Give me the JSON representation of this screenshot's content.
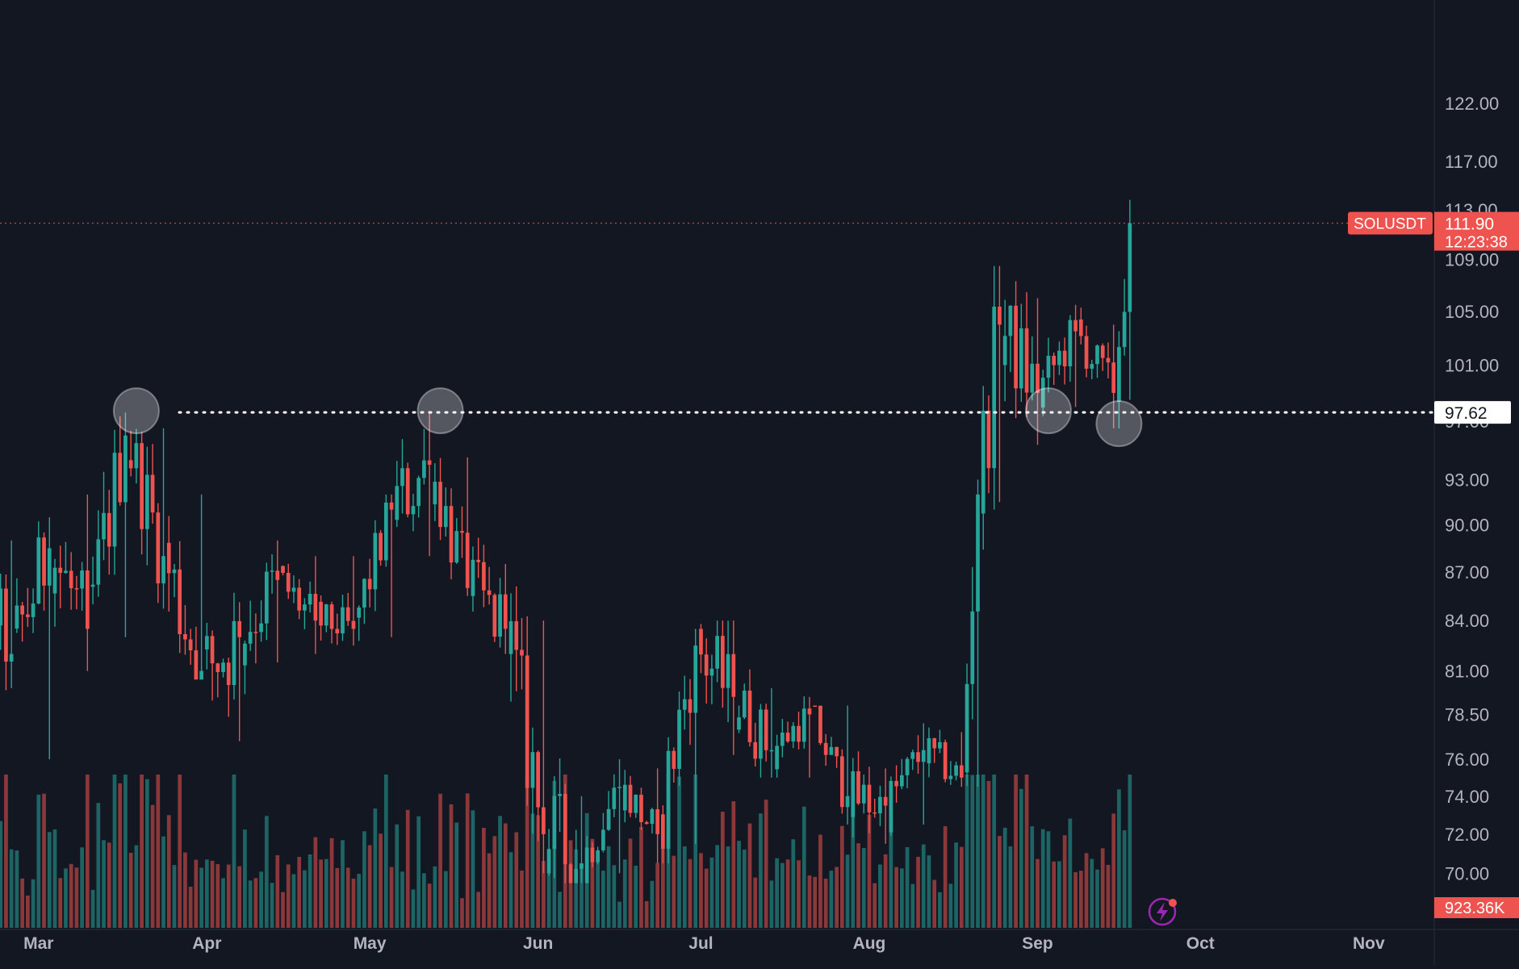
{
  "colors": {
    "background": "#131722",
    "up": "#26a69a",
    "down": "#ef5350",
    "axis_text": "#b2b5be",
    "axis_border": "#2a2e39",
    "support_line": "#ffffff",
    "circle_fill": "#ffffff",
    "price_badge": "#ef5350",
    "level_label_bg": "#ffffff",
    "level_label_text": "#131722",
    "flash_icon": "#9c27b0"
  },
  "icons": {
    "flash": "lightning-bolt-icon"
  },
  "chart_data": {
    "type": "candlestick",
    "symbol": "SOLUSDT",
    "price_axis_labels": [
      "122.00",
      "117.00",
      "113.00",
      "109.00",
      "105.00",
      "101.00",
      "97.00",
      "93.00",
      "90.00",
      "87.00",
      "84.00",
      "81.00",
      "78.50",
      "76.00",
      "74.00",
      "72.00",
      "70.00"
    ],
    "time_axis_labels": [
      "Mar",
      "Apr",
      "May",
      "Jun",
      "Jul",
      "Aug",
      "Sep",
      "Oct",
      "Nov"
    ],
    "last_price": "111.90",
    "countdown": "12:23:38",
    "volume_label": "923.36K",
    "support_level": "97.62",
    "support_value": 97.62,
    "y_scale": "log",
    "y_range": [
      69.2,
      126.5
    ],
    "x_range": [
      "2025-02-10",
      "2025-11-15"
    ],
    "grid": false,
    "ohlc_sampled": [
      {
        "date": "2025-02-10",
        "open": 81.5,
        "high": 86.0,
        "low": 77.0,
        "close": 78.0
      },
      {
        "date": "2025-02-17",
        "open": 78.0,
        "high": 89.5,
        "low": 77.5,
        "close": 88.0
      },
      {
        "date": "2025-02-24",
        "open": 88.0,
        "high": 89.0,
        "low": 80.0,
        "close": 82.0
      },
      {
        "date": "2025-03-03",
        "open": 82.0,
        "high": 90.5,
        "low": 76.0,
        "close": 88.5
      },
      {
        "date": "2025-03-10",
        "open": 88.5,
        "high": 92.0,
        "low": 81.0,
        "close": 83.5
      },
      {
        "date": "2025-03-17",
        "open": 83.5,
        "high": 97.6,
        "low": 83.0,
        "close": 96.0
      },
      {
        "date": "2025-03-24",
        "open": 96.0,
        "high": 96.5,
        "low": 86.0,
        "close": 88.0
      },
      {
        "date": "2025-03-31",
        "open": 88.0,
        "high": 92.0,
        "low": 80.5,
        "close": 81.0
      },
      {
        "date": "2025-04-07",
        "open": 81.0,
        "high": 85.0,
        "low": 77.0,
        "close": 83.0
      },
      {
        "date": "2025-04-14",
        "open": 83.0,
        "high": 89.0,
        "low": 81.5,
        "close": 86.5
      },
      {
        "date": "2025-04-21",
        "open": 86.5,
        "high": 88.0,
        "low": 82.0,
        "close": 84.0
      },
      {
        "date": "2025-04-28",
        "open": 84.0,
        "high": 88.0,
        "low": 82.5,
        "close": 83.5
      },
      {
        "date": "2025-05-05",
        "open": 83.5,
        "high": 92.0,
        "low": 83.0,
        "close": 91.0
      },
      {
        "date": "2025-05-12",
        "open": 91.0,
        "high": 97.6,
        "low": 88.0,
        "close": 94.0
      },
      {
        "date": "2025-05-19",
        "open": 94.0,
        "high": 94.5,
        "low": 85.5,
        "close": 86.0
      },
      {
        "date": "2025-05-26",
        "open": 86.0,
        "high": 87.5,
        "low": 82.0,
        "close": 83.5
      },
      {
        "date": "2025-06-02",
        "open": 83.5,
        "high": 84.0,
        "low": 70.0,
        "close": 72.0
      },
      {
        "date": "2025-06-09",
        "open": 72.0,
        "high": 74.0,
        "low": 69.5,
        "close": 70.5
      },
      {
        "date": "2025-06-16",
        "open": 70.5,
        "high": 76.0,
        "low": 70.0,
        "close": 74.5
      },
      {
        "date": "2025-06-23",
        "open": 74.5,
        "high": 75.5,
        "low": 70.5,
        "close": 72.0
      },
      {
        "date": "2025-06-30",
        "open": 72.0,
        "high": 83.5,
        "low": 71.5,
        "close": 82.5
      },
      {
        "date": "2025-07-07",
        "open": 82.5,
        "high": 84.0,
        "low": 78.0,
        "close": 79.5
      },
      {
        "date": "2025-07-14",
        "open": 79.5,
        "high": 80.0,
        "low": 75.0,
        "close": 76.5
      },
      {
        "date": "2025-07-21",
        "open": 76.5,
        "high": 79.0,
        "low": 75.0,
        "close": 78.5
      },
      {
        "date": "2025-07-28",
        "open": 78.5,
        "high": 79.0,
        "low": 72.5,
        "close": 74.0
      },
      {
        "date": "2025-08-04",
        "open": 74.0,
        "high": 75.5,
        "low": 71.5,
        "close": 73.5
      },
      {
        "date": "2025-08-11",
        "open": 73.5,
        "high": 78.0,
        "low": 72.5,
        "close": 76.5
      },
      {
        "date": "2025-08-18",
        "open": 76.5,
        "high": 77.5,
        "low": 74.5,
        "close": 75.0
      },
      {
        "date": "2025-08-21",
        "open": 75.0,
        "high": 93.0,
        "low": 74.5,
        "close": 92.0
      },
      {
        "date": "2025-08-25",
        "open": 92.0,
        "high": 108.5,
        "low": 91.5,
        "close": 104.0
      },
      {
        "date": "2025-09-01",
        "open": 104.0,
        "high": 106.0,
        "low": 97.0,
        "close": 99.0
      },
      {
        "date": "2025-09-08",
        "open": 99.0,
        "high": 105.5,
        "low": 98.0,
        "close": 103.5
      },
      {
        "date": "2025-09-15",
        "open": 103.5,
        "high": 104.0,
        "low": 96.5,
        "close": 99.0
      },
      {
        "date": "2025-09-18",
        "open": 99.0,
        "high": 113.8,
        "low": 98.5,
        "close": 111.9
      }
    ]
  }
}
